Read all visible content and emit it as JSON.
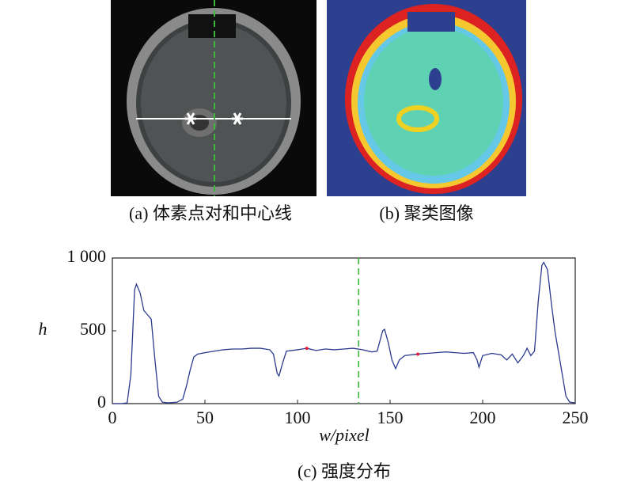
{
  "panels": [
    {
      "caption": "(a) 体素点对和中心线"
    },
    {
      "caption": "(b) 聚类图像"
    }
  ],
  "chart_data": {
    "type": "line",
    "caption": "(c) 强度分布",
    "xlabel": "w/pixel",
    "ylabel": "h",
    "x": [
      0,
      5,
      8,
      10,
      12,
      13,
      15,
      17,
      19,
      21,
      23,
      25,
      27,
      30,
      35,
      38,
      40,
      42,
      44,
      46,
      50,
      55,
      60,
      65,
      70,
      75,
      80,
      85,
      87,
      89,
      90,
      92,
      94,
      100,
      105,
      110,
      115,
      120,
      125,
      130,
      135,
      140,
      143,
      146,
      147,
      149,
      151,
      153,
      155,
      158,
      165,
      170,
      175,
      180,
      185,
      190,
      195,
      197,
      198,
      200,
      205,
      210,
      213,
      216,
      219,
      222,
      224,
      226,
      228,
      230,
      232,
      233,
      235,
      237,
      239,
      241,
      243,
      245,
      247,
      250
    ],
    "series": [
      {
        "name": "h",
        "color": "#2b3a8f",
        "values": [
          0,
          0,
          5,
          200,
          780,
          820,
          760,
          640,
          610,
          580,
          300,
          50,
          10,
          5,
          10,
          30,
          120,
          230,
          320,
          340,
          350,
          360,
          370,
          375,
          375,
          380,
          380,
          370,
          340,
          210,
          190,
          280,
          360,
          370,
          380,
          365,
          375,
          370,
          375,
          380,
          370,
          355,
          360,
          500,
          510,
          420,
          300,
          240,
          300,
          330,
          340,
          345,
          350,
          355,
          350,
          345,
          350,
          300,
          250,
          330,
          345,
          335,
          300,
          340,
          280,
          330,
          380,
          330,
          360,
          700,
          950,
          970,
          920,
          700,
          500,
          350,
          200,
          50,
          10,
          5
        ]
      }
    ],
    "markers": {
      "x": [
        105,
        165
      ],
      "values": [
        380,
        340
      ],
      "color": "#e0203a"
    },
    "vline": {
      "x": 133,
      "color": "#3cb83c"
    },
    "xlim": [
      0,
      250
    ],
    "xticks": [
      0,
      50,
      100,
      150,
      200,
      250
    ],
    "ylim": [
      0,
      1000
    ],
    "yticks": [
      0,
      500,
      {
        "value": 1000,
        "label": "1 000"
      }
    ]
  }
}
